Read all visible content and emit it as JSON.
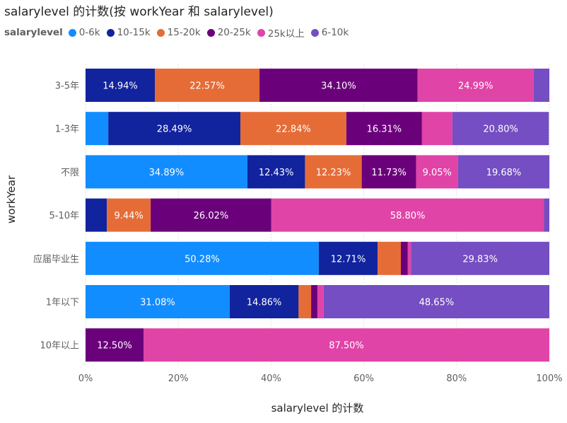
{
  "title": "salarylevel 的计数(按 workYear 和 salarylevel)",
  "legend": {
    "title": "salarylevel",
    "items": [
      {
        "name": "0-6k",
        "color": "#118DFF"
      },
      {
        "name": "10-15k",
        "color": "#12239E"
      },
      {
        "name": "15-20k",
        "color": "#E66C37"
      },
      {
        "name": "20-25k",
        "color": "#6B007B"
      },
      {
        "name": "25k以上",
        "color": "#E044A7"
      },
      {
        "name": "6-10k",
        "color": "#744EC2"
      }
    ]
  },
  "chart_data": {
    "type": "bar",
    "orientation": "horizontal",
    "stacking": "percent",
    "title": "salarylevel 的计数(按 workYear 和 salarylevel)",
    "xlabel": "salarylevel 的计数",
    "ylabel": "workYear",
    "xlim": [
      0,
      100
    ],
    "x_ticks": [
      "0%",
      "20%",
      "40%",
      "60%",
      "80%",
      "100%"
    ],
    "grid": "vertical dashed",
    "legend_position": "top-left",
    "categories": [
      "3-5年",
      "1-3年",
      "不限",
      "5-10年",
      "应届毕业生",
      "1年以下",
      "10年以上"
    ],
    "series": [
      {
        "name": "0-6k",
        "color": "#118DFF",
        "values": [
          0,
          4.9,
          34.89,
          0,
          50.28,
          31.08,
          0
        ],
        "labels": [
          "",
          "",
          "34.89%",
          "",
          "50.28%",
          "31.08%",
          ""
        ]
      },
      {
        "name": "10-15k",
        "color": "#12239E",
        "values": [
          14.94,
          28.49,
          12.43,
          4.6,
          12.71,
          14.86,
          0
        ],
        "labels": [
          "14.94%",
          "28.49%",
          "12.43%",
          "",
          "12.71%",
          "14.86%",
          ""
        ]
      },
      {
        "name": "15-20k",
        "color": "#E66C37",
        "values": [
          22.57,
          22.84,
          12.23,
          9.44,
          5.0,
          2.7,
          0
        ],
        "labels": [
          "22.57%",
          "22.84%",
          "12.23%",
          "9.44%",
          "",
          "",
          ""
        ]
      },
      {
        "name": "20-25k",
        "color": "#6B007B",
        "values": [
          34.1,
          16.31,
          11.73,
          26.02,
          1.5,
          1.35,
          12.5
        ],
        "labels": [
          "34.10%",
          "16.31%",
          "11.73%",
          "26.02%",
          "",
          "",
          "12.50%"
        ]
      },
      {
        "name": "25k以上",
        "color": "#E044A7",
        "values": [
          24.99,
          6.56,
          9.05,
          58.8,
          0.68,
          1.36,
          87.5
        ],
        "labels": [
          "24.99%",
          "",
          "9.05%",
          "58.80%",
          "",
          "",
          "87.50%"
        ]
      },
      {
        "name": "6-10k",
        "color": "#744EC2",
        "values": [
          3.4,
          20.8,
          19.68,
          1.14,
          29.83,
          48.65,
          0
        ],
        "labels": [
          "",
          "20.80%",
          "19.68%",
          "",
          "29.83%",
          "48.65%",
          ""
        ]
      }
    ]
  }
}
